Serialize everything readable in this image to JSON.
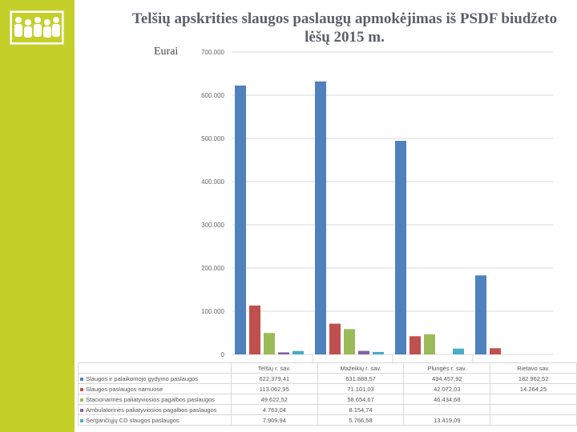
{
  "title": "Telšių apskrities slaugos paslaugų  apmokėjimas iš PSDF biudžeto lėšų 2015 m.",
  "unit_label": "Eurai",
  "chart_data": {
    "type": "bar",
    "title": "Telšių apskrities slaugos paslaugų  apmokėjimas iš PSDF biudžeto lėšų 2015 m.",
    "ylabel": "Eurai",
    "ylim": [
      0,
      700000
    ],
    "grid": true,
    "yticks": [
      "0",
      "100.000",
      "200.000",
      "300.000",
      "400.000",
      "500.000",
      "600.000",
      "700.000"
    ],
    "categories": [
      "Telšių r. sav.",
      "Mažeikių r. sav.",
      "Plungės r. sav.",
      "Rietavo sav."
    ],
    "series": [
      {
        "name": "Slaugos ir palaikomojo gydymo paslaugos",
        "color": "#4f81bd",
        "values": [
          622379.41,
          631888.57,
          494457.92,
          182962.52
        ],
        "labels": [
          "622.379,41",
          "631.888,57",
          "494.457,92",
          "182.962,52"
        ]
      },
      {
        "name": "Slaugos paslaugos namuose",
        "color": "#c0504d",
        "values": [
          113062.95,
          71101.03,
          42072.03,
          14264.25
        ],
        "labels": [
          "113.062,95",
          "71.101,03",
          "42.072,03",
          "14.264,25"
        ]
      },
      {
        "name": "Stacionarinės paliatyviosios pagalbos paslaugos",
        "color": "#9bbb59",
        "values": [
          49622.52,
          58654.67,
          46434.68,
          null
        ],
        "labels": [
          "49.622,52",
          "58.654,67",
          "46.434,68",
          ""
        ]
      },
      {
        "name": "Ambulatorinės paliatyviosios pagalbos paslaugos",
        "color": "#8064a2",
        "values": [
          4763.04,
          8154.74,
          null,
          null
        ],
        "labels": [
          "4.763,04",
          "8.154,74",
          "",
          ""
        ]
      },
      {
        "name": "Sergančiųjų CD slaugos paslaugos",
        "color": "#4bacc6",
        "values": [
          7909.94,
          5766.58,
          13419.09,
          null
        ],
        "labels": [
          "7.909,94",
          "5.766,58",
          "13.419,09",
          ""
        ]
      }
    ]
  }
}
